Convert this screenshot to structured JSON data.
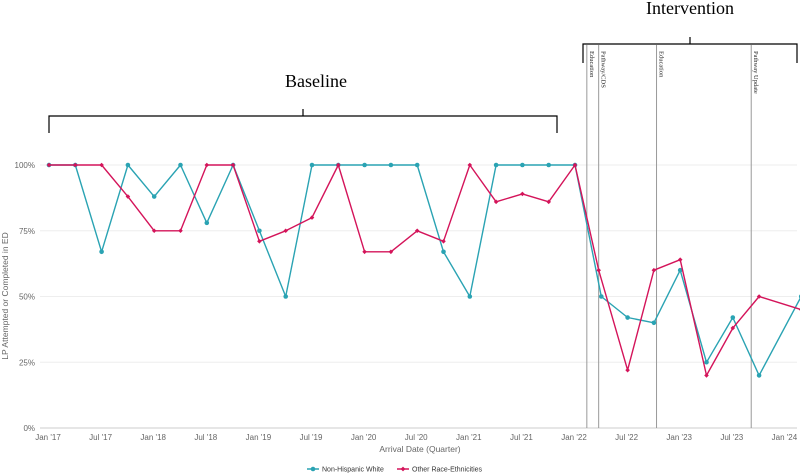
{
  "chart_data": {
    "type": "line",
    "xlabel": "Arrival Date (Quarter)",
    "ylabel": "LP Attempted or Completed in ED",
    "ylim": [
      0,
      100
    ],
    "yticks": [
      "0%",
      "25%",
      "50%",
      "75%",
      "100%"
    ],
    "xticks": [
      "Jan '17",
      "Jul '17",
      "Jan '18",
      "Jul '18",
      "Jan '19",
      "Jul '19",
      "Jan '20",
      "Jul '20",
      "Jan '21",
      "Jul '21",
      "Jan '22",
      "Jul '22",
      "Jan '23",
      "Jul '23",
      "Jan '24"
    ],
    "x_quarters": [
      "Q1 '17",
      "Q2 '17",
      "Q3 '17",
      "Q4 '17",
      "Q1 '18",
      "Q2 '18",
      "Q3 '18",
      "Q4 '18",
      "Q1 '19",
      "Q2 '19",
      "Q3 '19",
      "Q4 '19",
      "Q1 '20",
      "Q2 '20",
      "Q3 '20",
      "Q4 '20",
      "Q1 '21",
      "Q2 '21",
      "Q3 '21",
      "Q4 '21",
      "Q1 '22",
      "Q2 '22",
      "Q3 '22",
      "Q4 '22",
      "Q1 '23",
      "Q2 '23",
      "Q3 '23",
      "Q4 '23",
      "Q1 '24"
    ],
    "series": [
      {
        "name": "Non-Hispanic White",
        "color": "#2aa3b3",
        "x": [
          0,
          1,
          2,
          3,
          4,
          5,
          6,
          7,
          8,
          9,
          10,
          11,
          12,
          13,
          14,
          15,
          16,
          17,
          18,
          19,
          20,
          21,
          22,
          23,
          24,
          25,
          26,
          27,
          28.6
        ],
        "values": [
          100,
          100,
          67,
          100,
          88,
          100,
          78,
          100,
          75,
          50,
          100,
          100,
          100,
          100,
          100,
          67,
          50,
          100,
          100,
          100,
          100,
          50,
          42,
          40,
          60,
          25,
          42,
          20,
          50
        ]
      },
      {
        "name": "Other Race-Ethnicities",
        "color": "#d4145a",
        "x": [
          0,
          1,
          2,
          3,
          4,
          5,
          6,
          7,
          8,
          9,
          10,
          11,
          12,
          13,
          14,
          15,
          16,
          17,
          18,
          19,
          20,
          20.9,
          22,
          23,
          24,
          25,
          26,
          27,
          28.6
        ],
        "values": [
          100,
          100,
          100,
          88,
          75,
          75,
          100,
          100,
          71,
          75,
          80,
          100,
          67,
          67,
          75,
          71,
          100,
          86,
          89,
          86,
          100,
          60,
          22,
          60,
          64,
          20,
          38,
          50,
          45
        ]
      }
    ],
    "phases": [
      {
        "label": "Baseline"
      },
      {
        "label": "Intervention"
      }
    ],
    "annotations": [
      {
        "label": "Education",
        "x": 20.45
      },
      {
        "label": "Pathway/CDS",
        "x": 20.9
      },
      {
        "label": "Education",
        "x": 23.1
      },
      {
        "label": "Pathway Update",
        "x": 26.7
      }
    ],
    "legend_position": "bottom-center"
  }
}
